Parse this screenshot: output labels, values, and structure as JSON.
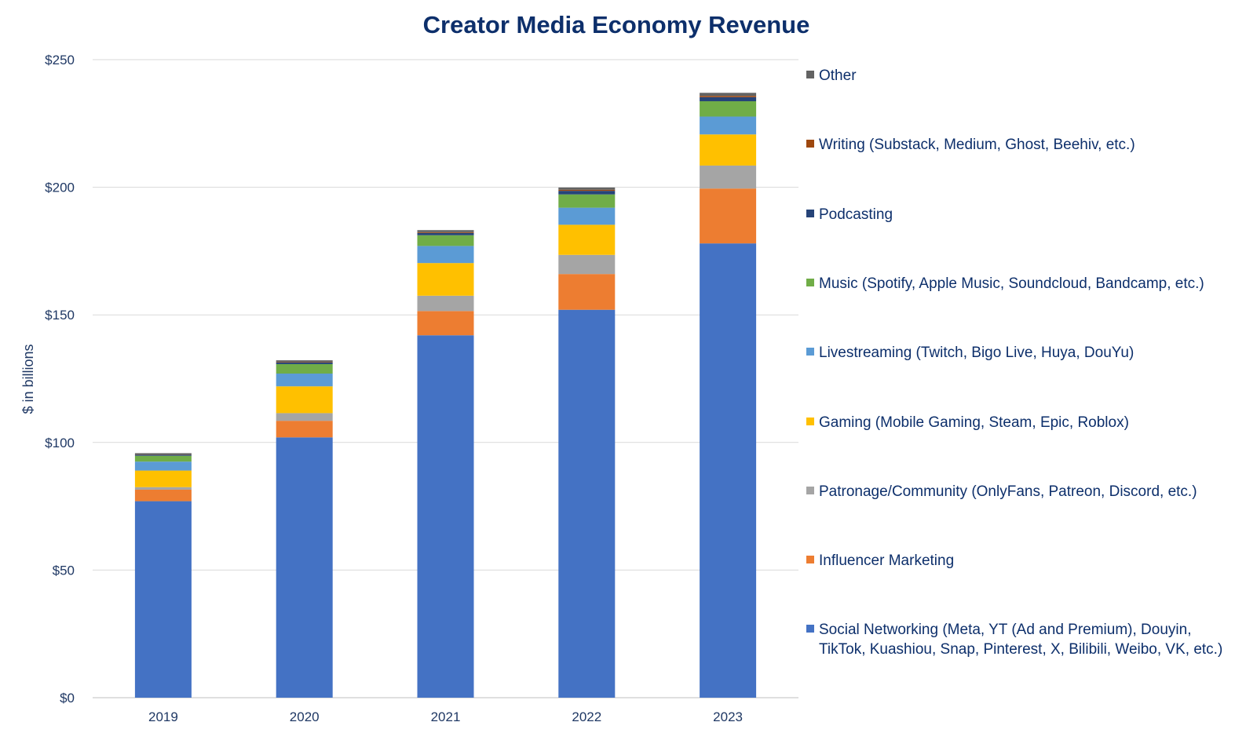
{
  "chart_data": {
    "type": "bar",
    "stacked": true,
    "title": "Creator Media Economy Revenue",
    "xlabel": "",
    "ylabel": "$ in billions",
    "ylim": [
      0,
      250
    ],
    "yticks": [
      "$0",
      "$50",
      "$100",
      "$150",
      "$200",
      "$250"
    ],
    "ytick_values": [
      0,
      50,
      100,
      150,
      200,
      250
    ],
    "grid": true,
    "legend_position": "right",
    "categories": [
      "2019",
      "2020",
      "2021",
      "2022",
      "2023"
    ],
    "series": [
      {
        "name": "Social Networking (Meta, YT (Ad and Premium), Douyin, TikTok, Kuashiou, Snap, Pinterest, X, Bilibili, Weibo, VK, etc.)",
        "color": "#4472c4",
        "values": [
          77,
          102,
          142,
          152,
          178
        ]
      },
      {
        "name": "Influencer Marketing",
        "color": "#ed7d31",
        "values": [
          4.5,
          6.5,
          9.5,
          14,
          21.5
        ]
      },
      {
        "name": "Patronage/Community (OnlyFans, Patreon, Discord, etc.)",
        "color": "#a5a5a5",
        "values": [
          1,
          3,
          6,
          7.5,
          9
        ]
      },
      {
        "name": "Gaming (Mobile Gaming, Steam, Epic, Roblox)",
        "color": "#ffc000",
        "values": [
          6.5,
          10.5,
          12.8,
          11.8,
          12.2
        ]
      },
      {
        "name": "Livestreaming (Twitch, Bigo Live, Huya, DouYu)",
        "color": "#5b9bd5",
        "values": [
          3.5,
          5,
          6.7,
          6.7,
          7
        ]
      },
      {
        "name": "Music (Spotify, Apple Music, Soundcloud, Bandcamp, etc.)",
        "color": "#70ad47",
        "values": [
          2.3,
          3.7,
          4.2,
          5.2,
          6
        ]
      },
      {
        "name": "Podcasting",
        "color": "#264478",
        "values": [
          0.4,
          0.7,
          0.9,
          1.4,
          1.6
        ]
      },
      {
        "name": "Writing (Substack, Medium, Ghost, Beehiv, etc.)",
        "color": "#9e480e",
        "values": [
          0.1,
          0.2,
          0.3,
          0.4,
          0.5
        ]
      },
      {
        "name": "Other",
        "color": "#636363",
        "values": [
          0.5,
          0.6,
          0.8,
          0.9,
          1.2
        ]
      }
    ]
  }
}
